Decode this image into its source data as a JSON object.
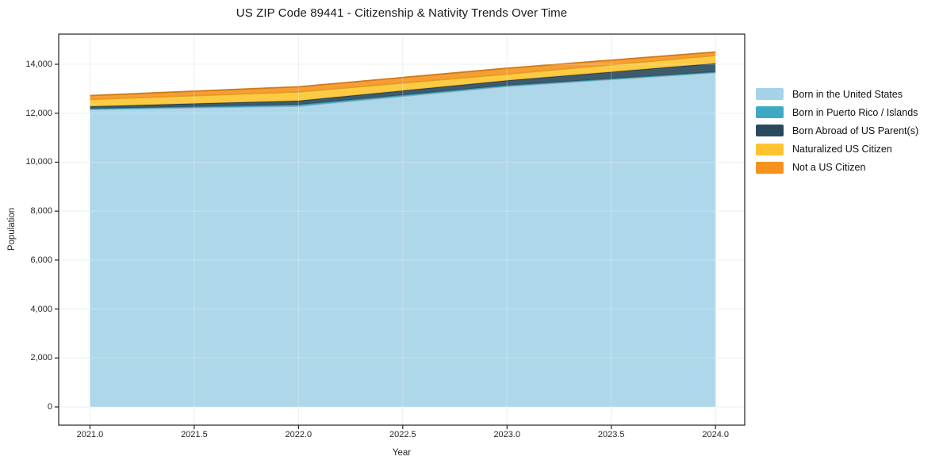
{
  "title": "US ZIP Code 89441 - Citizenship & Nativity Trends Over Time",
  "chart_data": {
    "type": "area",
    "stacked": true,
    "title": "US ZIP Code 89441 - Citizenship & Nativity Trends Over Time",
    "xlabel": "Year",
    "ylabel": "Population",
    "x": [
      2021,
      2022,
      2023,
      2024
    ],
    "series": [
      {
        "name": "Born in the United States",
        "color": "#a5d3e8",
        "values": [
          12160,
          12290,
          13100,
          13660
        ]
      },
      {
        "name": "Born in Puerto Rico / Islands",
        "color": "#3fa9c5",
        "values": [
          30,
          60,
          40,
          30
        ]
      },
      {
        "name": "Born Abroad of US Parent(s)",
        "color": "#29495c",
        "values": [
          90,
          160,
          200,
          350
        ]
      },
      {
        "name": "Naturalized US Citizen",
        "color": "#fdc42f",
        "values": [
          280,
          360,
          260,
          320
        ]
      },
      {
        "name": "Not a US Citizen",
        "color": "#f5921e",
        "values": [
          160,
          210,
          240,
          140
        ]
      }
    ],
    "totals": [
      12720,
      13080,
      13840,
      14500
    ],
    "x_ticks": [
      "2021.0",
      "2021.5",
      "2022.0",
      "2022.5",
      "2023.0",
      "2023.5",
      "2024.0"
    ],
    "x_tick_values": [
      2021,
      2021.5,
      2022,
      2022.5,
      2023,
      2023.5,
      2024
    ],
    "y_ticks": [
      "0",
      "2,000",
      "4,000",
      "6,000",
      "8,000",
      "10,000",
      "12,000",
      "14,000"
    ],
    "y_tick_values": [
      0,
      2000,
      4000,
      6000,
      8000,
      10000,
      12000,
      14000
    ],
    "xlim": [
      2020.85,
      2024.14
    ],
    "ylim": [
      -745,
      15232
    ],
    "grid": true,
    "legend_position": "right-outside",
    "style": {
      "background": "#ffffff",
      "grid_color": "#e8e8e8",
      "axis_color": "#222222",
      "fill_opacity": 0.9
    }
  }
}
